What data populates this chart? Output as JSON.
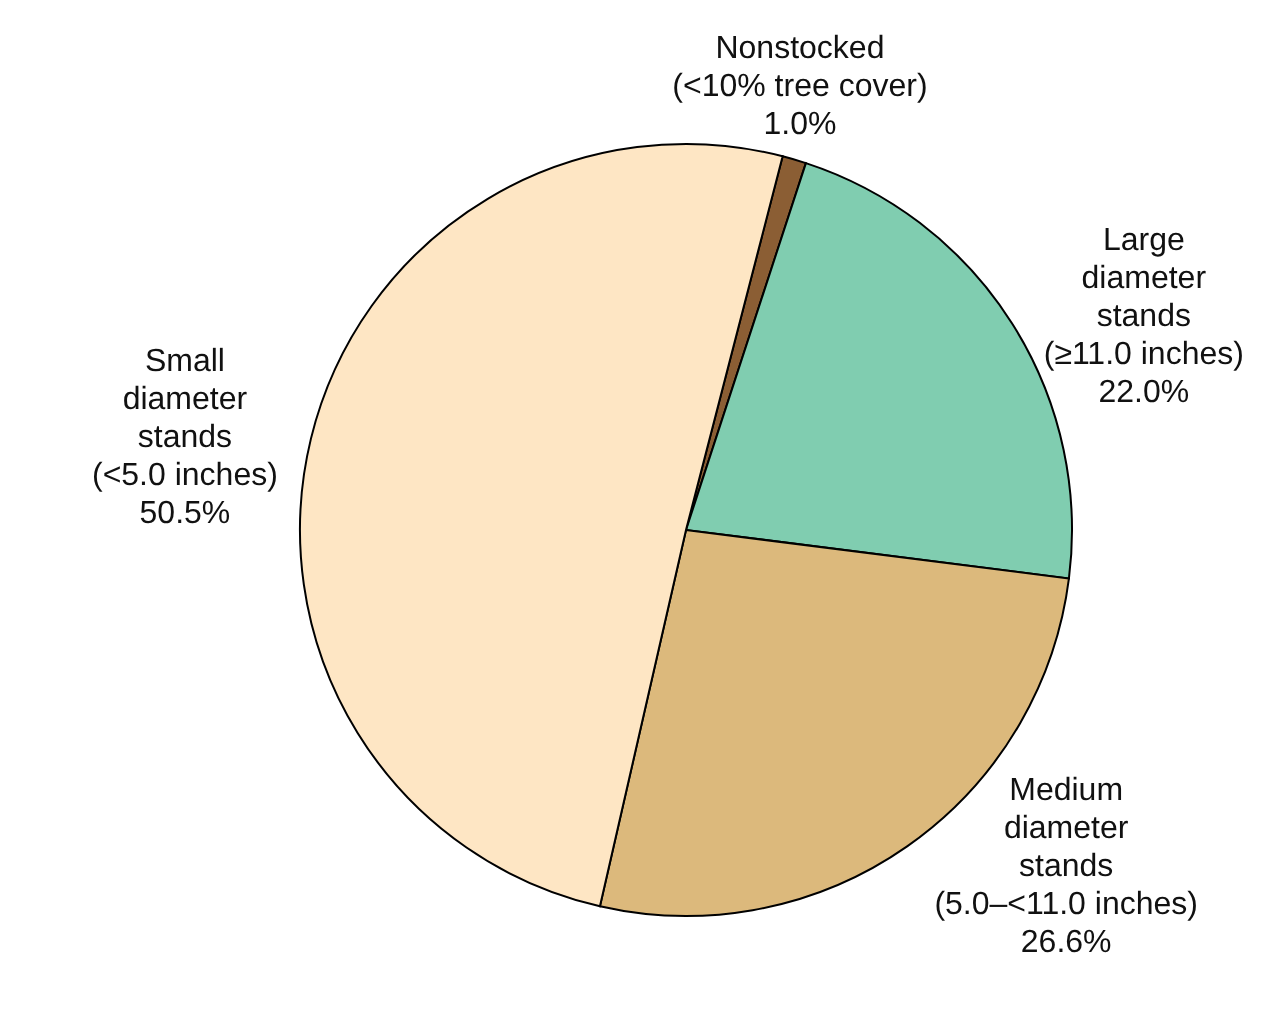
{
  "chart_data": {
    "type": "pie",
    "categories": [
      "Nonstocked\n(<10% tree cover)",
      "Large\ndiameter\nstands\n(≥11.0 inches)",
      "Medium\ndiameter\nstands\n(5.0–<11.0 inches)",
      "Small\ndiameter\nstands\n(<5.0 inches)"
    ],
    "values": [
      1.0,
      22.0,
      26.6,
      50.5
    ],
    "value_labels": [
      "1.0%",
      "22.0%",
      "26.6%",
      "50.5%"
    ],
    "colors": [
      "#8b5e34",
      "#80cdb0",
      "#dcb97c",
      "#fee6c4"
    ]
  }
}
